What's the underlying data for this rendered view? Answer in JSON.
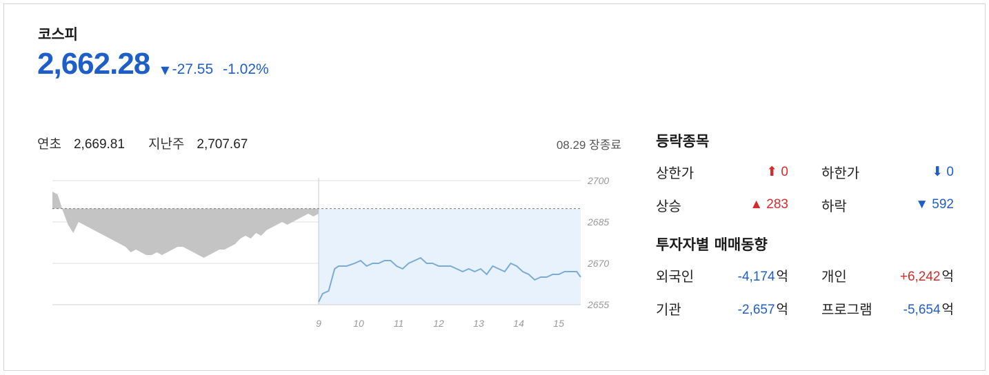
{
  "index": {
    "name": "코스피",
    "price": "2,662.28",
    "change_arrow": "▼",
    "change": "-27.55",
    "change_rate": "-1.02%"
  },
  "meta": {
    "ytd_label": "연초",
    "ytd_value": "2,669.81",
    "last_week_label": "지난주",
    "last_week_value": "2,707.67",
    "closing": "08.29 장종료"
  },
  "breadth": {
    "title": "등락종목",
    "upper_limit": {
      "label": "상한가",
      "value": "⬆ 0"
    },
    "lower_limit": {
      "label": "하한가",
      "value": "⬇ 0"
    },
    "advance": {
      "label": "상승",
      "value": "▲ 283"
    },
    "decline": {
      "label": "하락",
      "value": "▼ 592"
    }
  },
  "investors": {
    "title": "투자자별 매매동향",
    "unit": "억",
    "foreign": {
      "label": "외국인",
      "value": "-4,174"
    },
    "individual": {
      "label": "개인",
      "value": "+6,242"
    },
    "institution": {
      "label": "기관",
      "value": "-2,657"
    },
    "program": {
      "label": "프로그램",
      "value": "-5,654"
    }
  },
  "colors": {
    "up": "#d62a2a",
    "down": "#1e5ec9",
    "prev_area": "#c4c4c4",
    "today_area": "#e8f2fc",
    "today_line": "#7aaad6"
  },
  "chart_data": {
    "type": "line",
    "y_ticks": [
      "2700",
      "2685",
      "2670",
      "2655"
    ],
    "x_ticks": [
      "9",
      "10",
      "11",
      "12",
      "13",
      "14",
      "15"
    ],
    "ylim": [
      2655,
      2700
    ],
    "prev_close": 2689.83,
    "previous_session": [
      2696,
      2695,
      2689,
      2684,
      2681,
      2685,
      2684,
      2683,
      2682,
      2681,
      2680,
      2679,
      2678,
      2677,
      2676,
      2674,
      2675,
      2674,
      2673,
      2673,
      2674,
      2673,
      2674,
      2675,
      2676,
      2676,
      2675,
      2674,
      2673,
      2672,
      2673,
      2674,
      2675,
      2675,
      2676,
      2677,
      2679,
      2680,
      2679,
      2681,
      2680,
      2682,
      2683,
      2684,
      2685,
      2684,
      2685,
      2686,
      2687,
      2688,
      2687,
      2688
    ],
    "today_x": [
      9.0,
      9.1,
      9.25,
      9.4,
      9.5,
      9.7,
      9.9,
      10.05,
      10.2,
      10.35,
      10.5,
      10.65,
      10.8,
      10.95,
      11.1,
      11.25,
      11.4,
      11.55,
      11.7,
      11.85,
      12.0,
      12.15,
      12.3,
      12.45,
      12.6,
      12.75,
      12.9,
      13.05,
      13.2,
      13.35,
      13.5,
      13.65,
      13.8,
      13.95,
      14.1,
      14.25,
      14.4,
      14.55,
      14.7,
      14.85,
      15.0,
      15.15,
      15.3,
      15.45,
      15.55
    ],
    "today": [
      2656,
      2659,
      2660,
      2668,
      2669,
      2669,
      2670,
      2671,
      2669,
      2670,
      2670,
      2671,
      2671,
      2669,
      2668,
      2670,
      2671,
      2672,
      2670,
      2670,
      2669,
      2669,
      2669,
      2668,
      2667,
      2668,
      2667,
      2668,
      2666,
      2669,
      2668,
      2667,
      2670,
      2669,
      2667,
      2666,
      2664,
      2665,
      2665,
      2666,
      2666,
      2667,
      2667,
      2667,
      2665
    ]
  }
}
